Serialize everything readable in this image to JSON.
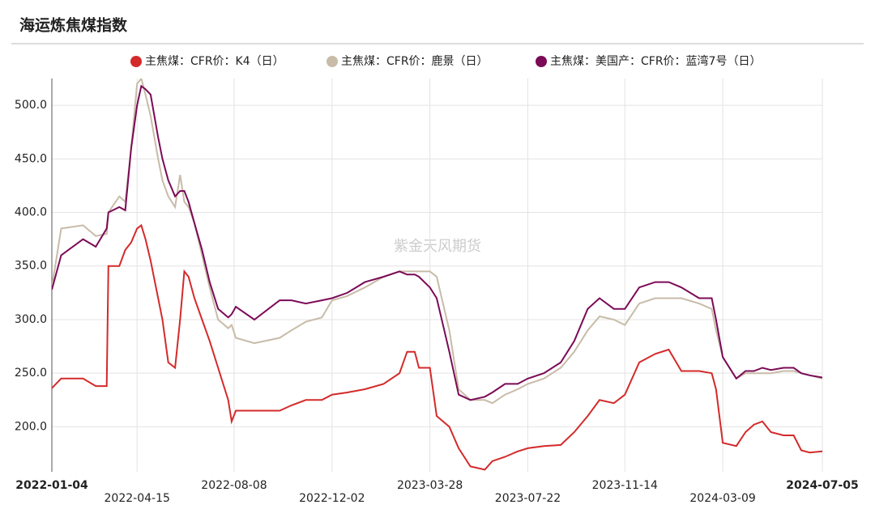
{
  "chart_data": {
    "type": "line",
    "title": "海运炼焦煤指数",
    "watermark": "紫金天风期货",
    "x": [
      "2022-01-04",
      "2022-01-15",
      "2022-02-10",
      "2022-02-25",
      "2022-03-10",
      "2022-03-12",
      "2022-03-25",
      "2022-04-01",
      "2022-04-08",
      "2022-04-15",
      "2022-04-20",
      "2022-04-25",
      "2022-05-01",
      "2022-05-10",
      "2022-05-15",
      "2022-05-22",
      "2022-05-30",
      "2022-06-05",
      "2022-06-10",
      "2022-06-15",
      "2022-06-22",
      "2022-07-01",
      "2022-07-10",
      "2022-07-20",
      "2022-08-01",
      "2022-08-05",
      "2022-08-10",
      "2022-09-01",
      "2022-10-01",
      "2022-10-15",
      "2022-11-01",
      "2022-11-20",
      "2022-12-02",
      "2022-12-20",
      "2023-01-10",
      "2023-02-01",
      "2023-02-20",
      "2023-03-01",
      "2023-03-10",
      "2023-03-15",
      "2023-03-28",
      "2023-04-05",
      "2023-04-20",
      "2023-05-01",
      "2023-05-15",
      "2023-06-01",
      "2023-06-10",
      "2023-06-25",
      "2023-07-10",
      "2023-07-22",
      "2023-08-10",
      "2023-08-30",
      "2023-09-15",
      "2023-10-01",
      "2023-10-15",
      "2023-11-01",
      "2023-11-14",
      "2023-12-01",
      "2023-12-20",
      "2024-01-05",
      "2024-01-20",
      "2024-02-10",
      "2024-02-25",
      "2024-03-01",
      "2024-03-09",
      "2024-03-25",
      "2024-04-05",
      "2024-04-15",
      "2024-04-25",
      "2024-05-05",
      "2024-05-20",
      "2024-06-01",
      "2024-06-10",
      "2024-06-20",
      "2024-07-05"
    ],
    "series": [
      {
        "name": "主焦煤：CFR价：K4（日）",
        "color": "#d42a2a",
        "values": [
          236,
          245,
          245,
          238,
          238,
          350,
          350,
          365,
          372,
          385,
          388,
          375,
          355,
          320,
          300,
          260,
          255,
          300,
          345,
          340,
          320,
          300,
          280,
          255,
          225,
          205,
          215,
          215,
          215,
          220,
          225,
          225,
          230,
          232,
          235,
          240,
          250,
          270,
          270,
          255,
          255,
          210,
          200,
          180,
          163,
          160,
          168,
          172,
          177,
          180,
          182,
          183,
          195,
          210,
          225,
          222,
          230,
          260,
          268,
          272,
          252,
          252,
          250,
          235,
          185,
          182,
          195,
          202,
          205,
          195,
          192,
          192,
          178,
          176,
          177
        ]
      },
      {
        "name": "主焦煤：CFR价：鹿景（日）",
        "color": "#c8bba8",
        "values": [
          330,
          385,
          388,
          378,
          380,
          400,
          415,
          410,
          460,
          520,
          525,
          510,
          490,
          450,
          430,
          415,
          405,
          435,
          410,
          405,
          390,
          360,
          330,
          300,
          292,
          295,
          283,
          278,
          283,
          290,
          298,
          302,
          318,
          322,
          330,
          340,
          345,
          345,
          345,
          345,
          345,
          340,
          290,
          235,
          225,
          225,
          222,
          230,
          235,
          240,
          245,
          255,
          270,
          290,
          303,
          300,
          295,
          315,
          320,
          320,
          320,
          315,
          310,
          290,
          265,
          245,
          250,
          250,
          250,
          250,
          252,
          252,
          250,
          248,
          245
        ]
      },
      {
        "name": "主焦煤：美国产：CFR价：蓝湾7号（日）",
        "color": "#7b0a57",
        "values": [
          328,
          360,
          375,
          368,
          385,
          400,
          405,
          402,
          460,
          500,
          518,
          515,
          510,
          470,
          450,
          430,
          415,
          420,
          420,
          410,
          390,
          365,
          335,
          310,
          302,
          305,
          312,
          300,
          318,
          318,
          315,
          318,
          320,
          325,
          335,
          340,
          345,
          342,
          342,
          340,
          330,
          320,
          270,
          230,
          225,
          228,
          232,
          240,
          240,
          245,
          250,
          260,
          280,
          310,
          320,
          310,
          310,
          330,
          335,
          335,
          330,
          320,
          320,
          300,
          265,
          245,
          252,
          252,
          255,
          253,
          255,
          255,
          250,
          248,
          246
        ]
      }
    ],
    "xlim": [
      "2022-01-04",
      "2024-07-05"
    ],
    "xticks": [
      "2022-01-04",
      "2022-04-15",
      "2022-08-08",
      "2022-12-02",
      "2023-03-28",
      "2023-07-22",
      "2023-11-14",
      "2024-03-09",
      "2024-07-05"
    ],
    "ylim": [
      158,
      525
    ],
    "yticks": [
      {
        "value": 200,
        "label": "200.0"
      },
      {
        "value": 250,
        "label": "250.0"
      },
      {
        "value": 300,
        "label": "300.0"
      },
      {
        "value": 350,
        "label": "350.0"
      },
      {
        "value": 400,
        "label": "400.0"
      },
      {
        "value": 450,
        "label": "450.0"
      },
      {
        "value": 500,
        "label": "500.0"
      }
    ],
    "grid": true
  }
}
